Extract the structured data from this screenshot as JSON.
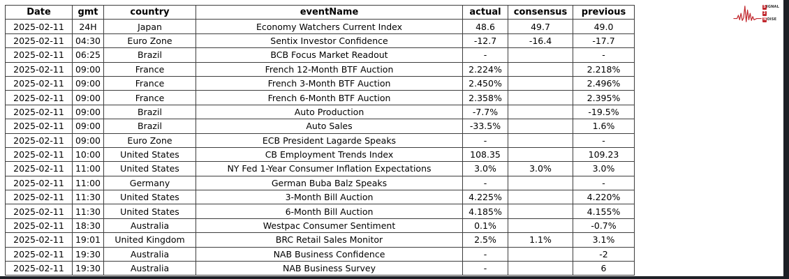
{
  "chart_data": {
    "type": "table",
    "title": "Economic calendar events for 2025-02-11",
    "columns": [
      "Date",
      "gmt",
      "country",
      "eventName",
      "actual",
      "consensus",
      "previous"
    ],
    "rows": [
      [
        "2025-02-11",
        "24H",
        "Japan",
        "Economy Watchers Current Index",
        "48.6",
        "49.7",
        "49.0"
      ],
      [
        "2025-02-11",
        "04:30",
        "Euro Zone",
        "Sentix Investor Confidence",
        "-12.7",
        "-16.4",
        "-17.7"
      ],
      [
        "2025-02-11",
        "06:25",
        "Brazil",
        "BCB Focus Market Readout",
        "-",
        "",
        "-"
      ],
      [
        "2025-02-11",
        "09:00",
        "France",
        "French 12-Month BTF Auction",
        "2.224%",
        "",
        "2.218%"
      ],
      [
        "2025-02-11",
        "09:00",
        "France",
        "French 3-Month BTF Auction",
        "2.450%",
        "",
        "2.496%"
      ],
      [
        "2025-02-11",
        "09:00",
        "France",
        "French 6-Month BTF Auction",
        "2.358%",
        "",
        "2.395%"
      ],
      [
        "2025-02-11",
        "09:00",
        "Brazil",
        "Auto Production",
        "-7.7%",
        "",
        "-19.5%"
      ],
      [
        "2025-02-11",
        "09:00",
        "Brazil",
        "Auto Sales",
        "-33.5%",
        "",
        "1.6%"
      ],
      [
        "2025-02-11",
        "09:00",
        "Euro Zone",
        "ECB President Lagarde Speaks",
        "-",
        "",
        "-"
      ],
      [
        "2025-02-11",
        "10:00",
        "United States",
        "CB Employment Trends Index",
        "108.35",
        "",
        "109.23"
      ],
      [
        "2025-02-11",
        "11:00",
        "United States",
        "NY Fed 1-Year Consumer Inflation Expectations",
        "3.0%",
        "3.0%",
        "3.0%"
      ],
      [
        "2025-02-11",
        "11:00",
        "Germany",
        "German Buba Balz Speaks",
        "-",
        "",
        "-"
      ],
      [
        "2025-02-11",
        "11:30",
        "United States",
        "3-Month Bill Auction",
        "4.225%",
        "",
        "4.220%"
      ],
      [
        "2025-02-11",
        "11:30",
        "United States",
        "6-Month Bill Auction",
        "4.185%",
        "",
        "4.155%"
      ],
      [
        "2025-02-11",
        "18:30",
        "Australia",
        "Westpac Consumer Sentiment",
        "0.1%",
        "",
        "-0.7%"
      ],
      [
        "2025-02-11",
        "19:01",
        "United Kingdom",
        "BRC Retail Sales Monitor",
        "2.5%",
        "1.1%",
        "3.1%"
      ],
      [
        "2025-02-11",
        "19:30",
        "Australia",
        "NAB Business Confidence",
        "-",
        "",
        "-2"
      ],
      [
        "2025-02-11",
        "19:30",
        "Australia",
        "NAB Business Survey",
        "-",
        "",
        "6"
      ]
    ],
    "layout_hints": {
      "header_bold": true,
      "all_cells_centered": true,
      "grid": "full black 1px borders"
    }
  },
  "logo": {
    "name": "Signal 2 Noise",
    "accent_color": "#c1272d",
    "lines": [
      {
        "boxed": "S",
        "rest": "IGNAL"
      },
      {
        "boxed": "2",
        "rest": ""
      },
      {
        "boxed": "N",
        "rest": "OISE"
      }
    ]
  },
  "colors": {
    "page_background": "#ffffff",
    "edge_background": "#1d2026",
    "table_border": "#3d3d3d",
    "text": "#000000"
  }
}
